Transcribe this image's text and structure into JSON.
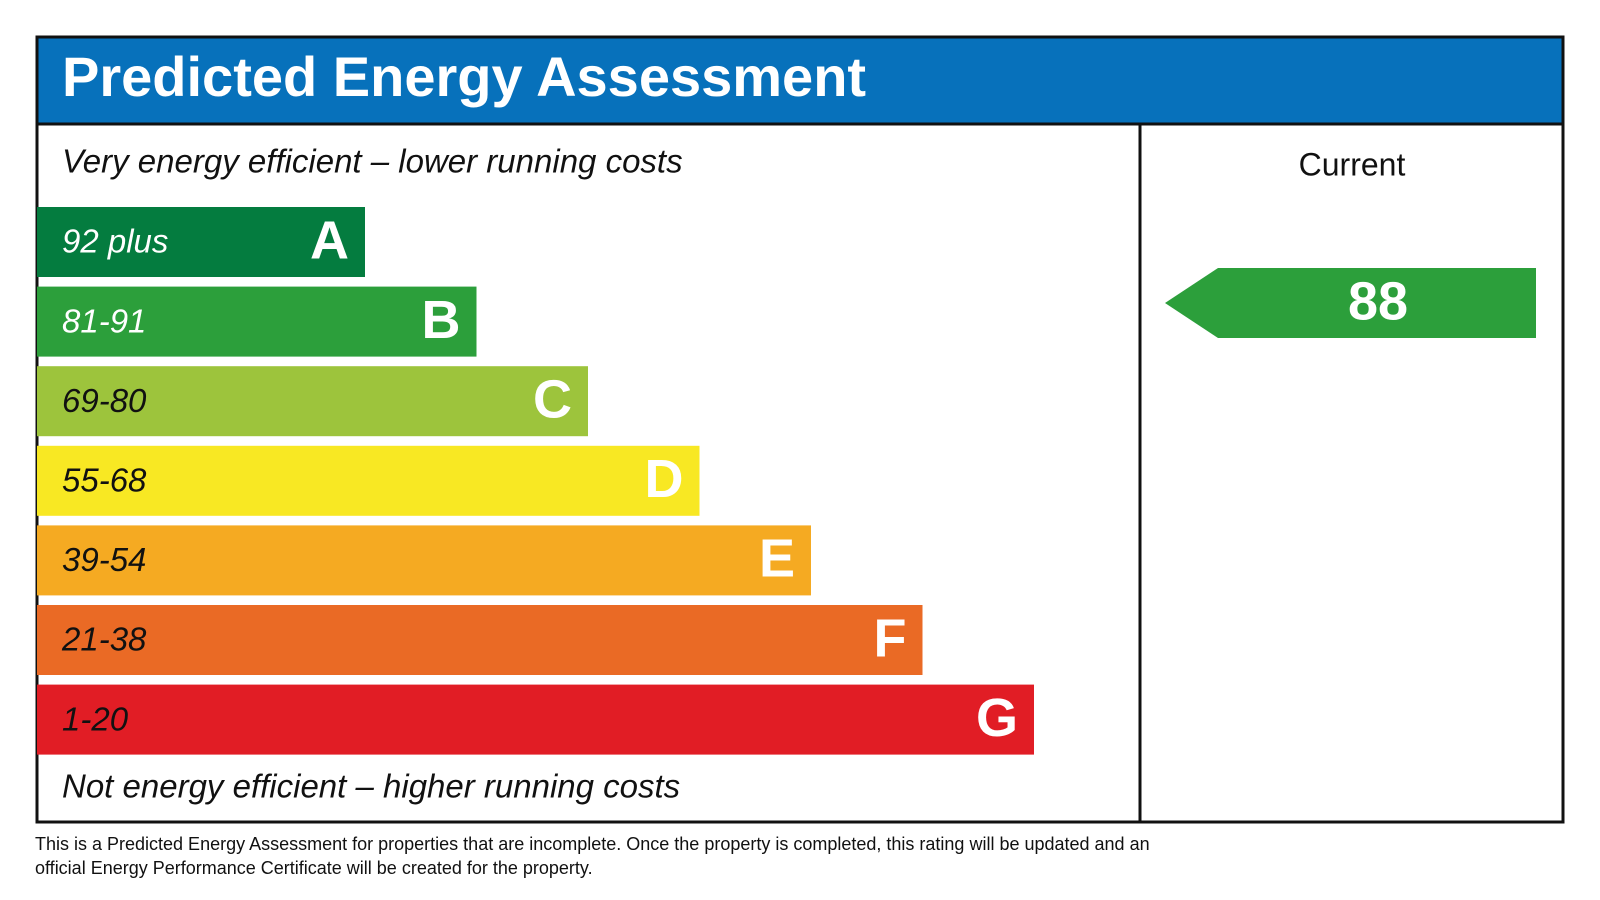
{
  "header": {
    "title": "Predicted Energy Assessment",
    "color": "#0771bb"
  },
  "top_label": "Very energy efficient – lower running costs",
  "bottom_label": "Not energy efficient – higher running costs",
  "bands": [
    {
      "range": "92 plus",
      "letter": "A",
      "color": "#047c3f",
      "label_color": "#ffffff"
    },
    {
      "range": "81-91",
      "letter": "B",
      "color": "#2c9f3b",
      "label_color": "#ffffff"
    },
    {
      "range": "69-80",
      "letter": "C",
      "color": "#9dc43c",
      "label_color": "#111111"
    },
    {
      "range": "55-68",
      "letter": "D",
      "color": "#f8e823",
      "label_color": "#111111"
    },
    {
      "range": "39-54",
      "letter": "E",
      "color": "#f5aa22",
      "label_color": "#111111"
    },
    {
      "range": "21-38",
      "letter": "F",
      "color": "#ea6a25",
      "label_color": "#111111"
    },
    {
      "range": "1-20",
      "letter": "G",
      "color": "#e11d25",
      "label_color": "#111111"
    }
  ],
  "current": {
    "label": "Current",
    "value": 88,
    "color": "#2c9f3b"
  },
  "footnote": [
    "This is a Predicted Energy Assessment for properties that are incomplete. Once the property is completed, this rating will be updated and an",
    "official Energy Performance Certificate will be created for the property."
  ]
}
